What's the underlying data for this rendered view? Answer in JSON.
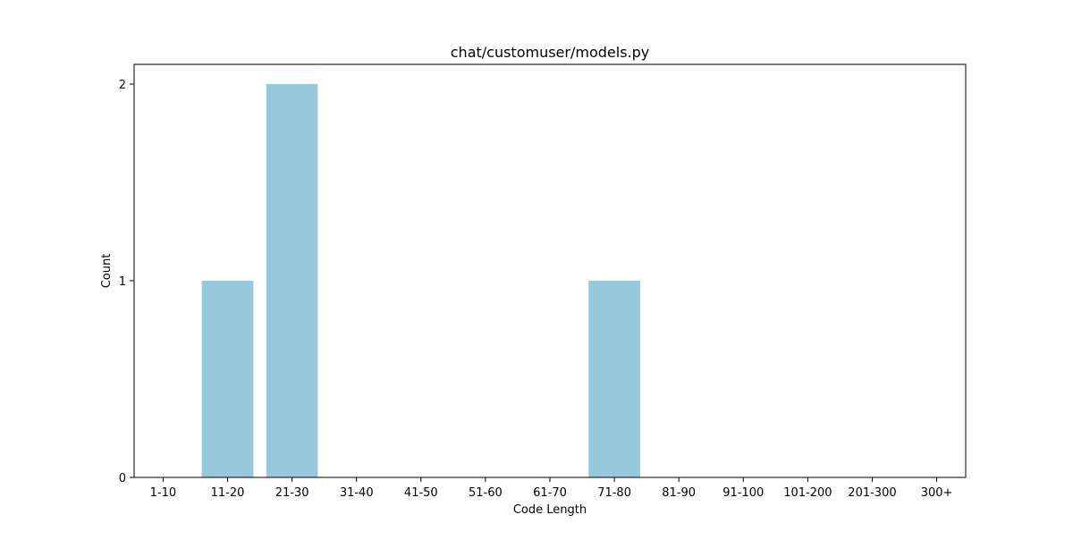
{
  "chart_data": {
    "type": "bar",
    "title": "chat/customuser/models.py",
    "xlabel": "Code Length",
    "ylabel": "Count",
    "categories": [
      "1-10",
      "11-20",
      "21-30",
      "31-40",
      "41-50",
      "51-60",
      "61-70",
      "71-80",
      "81-90",
      "91-100",
      "101-200",
      "201-300",
      "300+"
    ],
    "values": [
      0,
      1,
      2,
      0,
      0,
      0,
      0,
      1,
      0,
      0,
      0,
      0,
      0
    ],
    "ylim": [
      0,
      2.1
    ],
    "yticks": [
      0,
      1,
      2
    ],
    "grid": false,
    "bar_color": "#96c9dc"
  }
}
